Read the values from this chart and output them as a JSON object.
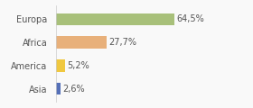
{
  "categories": [
    "Europa",
    "Africa",
    "America",
    "Asia"
  ],
  "values": [
    64.5,
    27.7,
    5.2,
    2.6
  ],
  "labels": [
    "64,5%",
    "27,7%",
    "5,2%",
    "2,6%"
  ],
  "bar_colors": [
    "#a8c07a",
    "#e8b07a",
    "#f0c840",
    "#5570b8"
  ],
  "background_color": "#f9f9f9",
  "xlim": [
    0,
    100
  ],
  "label_fontsize": 7.0,
  "category_fontsize": 7.0,
  "bar_height": 0.52
}
